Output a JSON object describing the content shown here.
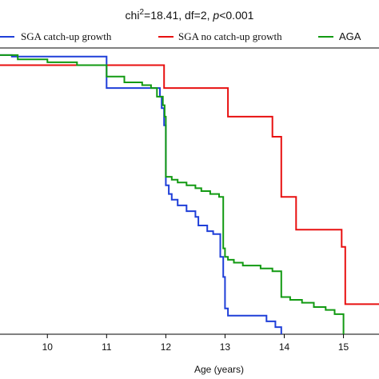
{
  "chart_data": {
    "type": "line",
    "title_parts": [
      "chi",
      "2",
      "=18.41, df=2, ",
      "p",
      "<0.001"
    ],
    "xlabel": "Age (years)",
    "ylabel": "",
    "xlim": [
      9.2,
      15.6
    ],
    "ylim": [
      0.0,
      1.0
    ],
    "x_ticks": [
      10,
      11,
      12,
      13,
      14,
      15
    ],
    "legend_position": "top",
    "grid": false,
    "series": [
      {
        "name": "SGA catch-up growth",
        "color": "#1f3fd8",
        "points": [
          [
            9.2,
            0.975
          ],
          [
            9.4,
            0.975
          ],
          [
            9.4,
            0.97
          ],
          [
            11.0,
            0.97
          ],
          [
            11.0,
            0.86
          ],
          [
            11.9,
            0.86
          ],
          [
            11.9,
            0.83
          ],
          [
            11.93,
            0.83
          ],
          [
            11.93,
            0.79
          ],
          [
            11.97,
            0.79
          ],
          [
            11.97,
            0.73
          ],
          [
            12.0,
            0.73
          ],
          [
            12.0,
            0.52
          ],
          [
            12.05,
            0.52
          ],
          [
            12.05,
            0.49
          ],
          [
            12.1,
            0.49
          ],
          [
            12.1,
            0.47
          ],
          [
            12.2,
            0.47
          ],
          [
            12.2,
            0.45
          ],
          [
            12.35,
            0.45
          ],
          [
            12.35,
            0.43
          ],
          [
            12.5,
            0.43
          ],
          [
            12.5,
            0.41
          ],
          [
            12.55,
            0.41
          ],
          [
            12.55,
            0.38
          ],
          [
            12.7,
            0.38
          ],
          [
            12.7,
            0.36
          ],
          [
            12.8,
            0.36
          ],
          [
            12.8,
            0.35
          ],
          [
            12.92,
            0.35
          ],
          [
            12.92,
            0.27
          ],
          [
            12.97,
            0.27
          ],
          [
            12.97,
            0.2
          ],
          [
            13.0,
            0.2
          ],
          [
            13.0,
            0.09
          ],
          [
            13.05,
            0.09
          ],
          [
            13.05,
            0.065
          ],
          [
            13.7,
            0.065
          ],
          [
            13.7,
            0.045
          ],
          [
            13.85,
            0.045
          ],
          [
            13.85,
            0.025
          ],
          [
            13.95,
            0.025
          ],
          [
            13.95,
            0.0
          ]
        ]
      },
      {
        "name": "SGA no catch-up growth",
        "color": "#e81010",
        "points": [
          [
            9.2,
            0.94
          ],
          [
            11.97,
            0.94
          ],
          [
            11.97,
            0.86
          ],
          [
            13.05,
            0.86
          ],
          [
            13.05,
            0.76
          ],
          [
            13.8,
            0.76
          ],
          [
            13.8,
            0.69
          ],
          [
            13.95,
            0.69
          ],
          [
            13.95,
            0.48
          ],
          [
            14.2,
            0.48
          ],
          [
            14.2,
            0.365
          ],
          [
            14.97,
            0.365
          ],
          [
            14.97,
            0.305
          ],
          [
            15.03,
            0.305
          ],
          [
            15.03,
            0.105
          ],
          [
            15.6,
            0.105
          ]
        ]
      },
      {
        "name": "AGA",
        "color": "#129a12",
        "points": [
          [
            9.2,
            0.975
          ],
          [
            9.5,
            0.975
          ],
          [
            9.5,
            0.96
          ],
          [
            10.0,
            0.96
          ],
          [
            10.0,
            0.95
          ],
          [
            10.5,
            0.95
          ],
          [
            10.5,
            0.94
          ],
          [
            11.0,
            0.94
          ],
          [
            11.0,
            0.9
          ],
          [
            11.3,
            0.9
          ],
          [
            11.3,
            0.88
          ],
          [
            11.6,
            0.88
          ],
          [
            11.6,
            0.87
          ],
          [
            11.75,
            0.87
          ],
          [
            11.75,
            0.86
          ],
          [
            11.85,
            0.86
          ],
          [
            11.85,
            0.83
          ],
          [
            11.95,
            0.83
          ],
          [
            11.95,
            0.8
          ],
          [
            11.98,
            0.8
          ],
          [
            11.98,
            0.76
          ],
          [
            12.0,
            0.76
          ],
          [
            12.0,
            0.55
          ],
          [
            12.1,
            0.55
          ],
          [
            12.1,
            0.54
          ],
          [
            12.2,
            0.54
          ],
          [
            12.2,
            0.53
          ],
          [
            12.35,
            0.53
          ],
          [
            12.35,
            0.52
          ],
          [
            12.5,
            0.52
          ],
          [
            12.5,
            0.51
          ],
          [
            12.6,
            0.51
          ],
          [
            12.6,
            0.5
          ],
          [
            12.75,
            0.5
          ],
          [
            12.75,
            0.49
          ],
          [
            12.9,
            0.49
          ],
          [
            12.9,
            0.48
          ],
          [
            12.97,
            0.48
          ],
          [
            12.97,
            0.3
          ],
          [
            13.0,
            0.3
          ],
          [
            13.0,
            0.27
          ],
          [
            13.05,
            0.27
          ],
          [
            13.05,
            0.26
          ],
          [
            13.15,
            0.26
          ],
          [
            13.15,
            0.25
          ],
          [
            13.3,
            0.25
          ],
          [
            13.3,
            0.24
          ],
          [
            13.6,
            0.24
          ],
          [
            13.6,
            0.23
          ],
          [
            13.8,
            0.23
          ],
          [
            13.8,
            0.22
          ],
          [
            13.95,
            0.22
          ],
          [
            13.95,
            0.13
          ],
          [
            14.1,
            0.13
          ],
          [
            14.1,
            0.12
          ],
          [
            14.3,
            0.12
          ],
          [
            14.3,
            0.11
          ],
          [
            14.5,
            0.11
          ],
          [
            14.5,
            0.095
          ],
          [
            14.7,
            0.095
          ],
          [
            14.7,
            0.085
          ],
          [
            14.85,
            0.085
          ],
          [
            14.85,
            0.07
          ],
          [
            15.0,
            0.07
          ],
          [
            15.0,
            0.0
          ]
        ]
      }
    ]
  }
}
